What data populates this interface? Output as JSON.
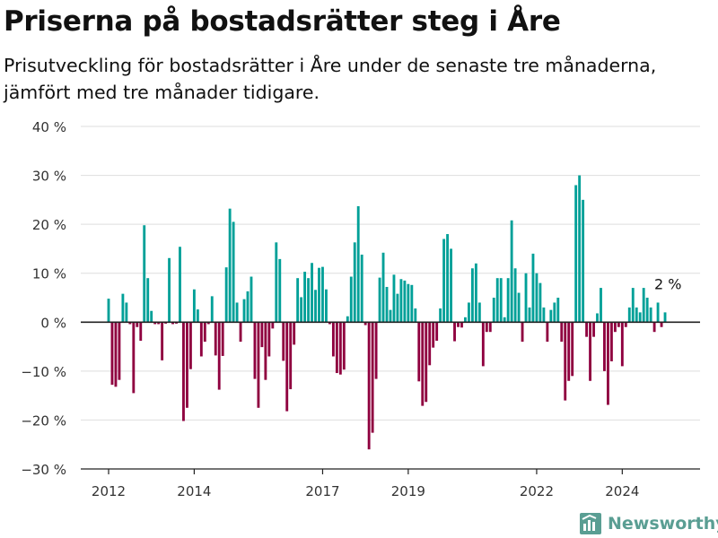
{
  "colors": {
    "positive": "#00a098",
    "negative": "#8f003f",
    "grid": "#dedede",
    "axis": "#222222"
  },
  "brand": {
    "name": "Newsworthy",
    "icon": "newsworthy-logo-icon"
  },
  "chart_data": {
    "type": "bar",
    "title": "Priserna på bostadsrätter steg i Åre",
    "subtitle": "Prisutveckling för bostadsrätter i Åre under de senaste tre månaderna, jämfört med tre månader tidigare.",
    "xlabel": "",
    "ylabel": "",
    "ylim": [
      -30,
      40
    ],
    "yticks": [
      -30,
      -20,
      -10,
      0,
      10,
      20,
      30,
      40
    ],
    "ytick_labels": [
      "−30 %",
      "−20 %",
      "−10 %",
      "0 %",
      "10 %",
      "20 %",
      "30 %",
      "40 %"
    ],
    "x_start": "2012-01",
    "x_end": "2025-02",
    "xticks": [
      "2012-01",
      "2014-01",
      "2017-01",
      "2019-01",
      "2022-01",
      "2024-01"
    ],
    "xtick_labels": [
      "2012",
      "2014",
      "2017",
      "2019",
      "2022",
      "2024"
    ],
    "grid": true,
    "legend": "none",
    "annotation": {
      "label": "2 %",
      "x": "2025-02",
      "value": 2
    },
    "series": [
      {
        "values": [
          4.8,
          -12.8,
          -13.2,
          -11.8,
          5.8,
          4.0,
          -0.4,
          -14.5,
          -1.0,
          -3.8,
          19.8,
          9.0,
          2.3,
          -0.4,
          -0.4,
          -7.8,
          -0.3,
          13.1,
          -0.4,
          -0.3,
          15.4,
          -20.2,
          -17.5,
          -9.6,
          6.7,
          2.6,
          -7.0,
          -4.0,
          -0.4,
          5.3,
          -6.8,
          -13.8,
          -6.9,
          11.2,
          23.2,
          20.5,
          4.0,
          -4.0,
          4.7,
          6.3,
          9.3,
          -11.6,
          -17.5,
          -5.1,
          -11.8,
          -7.0,
          -1.3,
          16.3,
          12.9,
          -7.9,
          -18.2,
          -13.7,
          -4.6,
          9.0,
          5.1,
          10.3,
          9.0,
          12.1,
          6.6,
          11.1,
          11.3,
          6.7,
          -0.4,
          -7.0,
          -10.4,
          -10.7,
          -9.7,
          1.2,
          9.3,
          16.3,
          23.7,
          13.8,
          -0.6,
          -26.0,
          -22.6,
          -11.6,
          9.1,
          14.2,
          7.2,
          2.5,
          9.7,
          5.8,
          8.8,
          8.5,
          7.8,
          7.6,
          2.8,
          -12.1,
          -17.1,
          -16.3,
          -8.8,
          -5.2,
          -3.8,
          2.8,
          17.0,
          18.0,
          15.0,
          -3.9,
          -1.0,
          -1.1,
          1.0,
          4.0,
          11.0,
          12.0,
          4.0,
          -9.0,
          -2.0,
          -2.0,
          5.0,
          9.0,
          9.0,
          1.0,
          9.0,
          20.8,
          11.0,
          6.0,
          -4.0,
          10.0,
          3.0,
          14.0,
          10.0,
          8.0,
          3.0,
          -4.0,
          2.5,
          4.0,
          5.0,
          -4.0,
          -16.0,
          -12.0,
          -11.0,
          28.0,
          30.0,
          25.0,
          -3.0,
          -12.0,
          -3.0,
          1.8,
          7.0,
          -10.0,
          -16.9,
          -8.0,
          -2.0,
          -1.0,
          -9.0,
          -1.0,
          3.0,
          7.0,
          3.0,
          2.0,
          7.0,
          5.0,
          3.0,
          -2.0,
          4.0,
          -1.0,
          2.0
        ]
      }
    ]
  }
}
